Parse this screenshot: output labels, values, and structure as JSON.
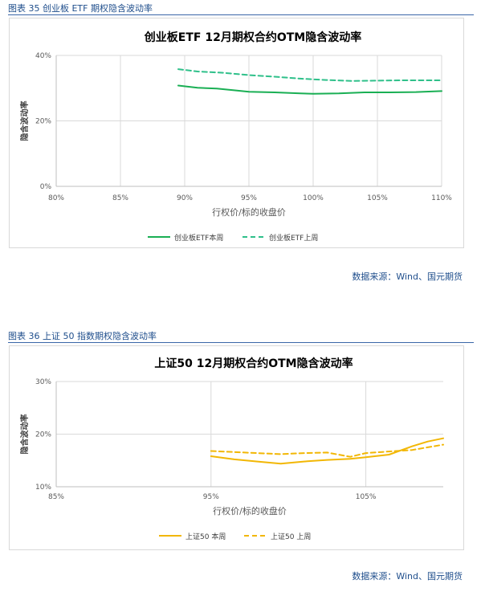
{
  "figures": [
    {
      "caption": "图表 35 创业板 ETF 期权隐含波动率",
      "source": "数据来源：Wind、国元期货",
      "colors": {
        "this_week": "#1aaf54",
        "last_week": "#2fc08a"
      },
      "chart_data": {
        "type": "line",
        "title": "创业板ETF 12月期权合约OTM隐含波动率",
        "xlabel": "行权价/标的收盘价",
        "ylabel": "隐含波动率",
        "xlim": [
          80,
          110
        ],
        "ylim": [
          0,
          40
        ],
        "x_ticks": [
          "80%",
          "85%",
          "90%",
          "95%",
          "100%",
          "105%",
          "110%"
        ],
        "y_ticks": [
          "0%",
          "20%",
          "40%"
        ],
        "grid": true,
        "legend": "bottom",
        "series": [
          {
            "name": "创业板ETF本周",
            "style": "solid",
            "x": [
              89.5,
              91,
              92.5,
              94,
              95,
              97,
              99,
              100,
              102,
              104,
              106,
              108,
              110
            ],
            "y": [
              30.8,
              30.1,
              29.9,
              29.3,
              28.9,
              28.7,
              28.4,
              28.3,
              28.4,
              28.7,
              28.7,
              28.8,
              29.1
            ]
          },
          {
            "name": "创业板ETF上周",
            "style": "dashed",
            "x": [
              89.5,
              91,
              93,
              95,
              97,
              99,
              101,
              103,
              105,
              107,
              110
            ],
            "y": [
              35.8,
              35.1,
              34.7,
              34.0,
              33.5,
              32.9,
              32.5,
              32.2,
              32.3,
              32.4,
              32.4
            ]
          }
        ]
      }
    },
    {
      "caption": "图表 36 上证 50 指数期权隐含波动率",
      "source": "数据来源：Wind、国元期货",
      "colors": {
        "this_week": "#f2b705",
        "last_week": "#f2b705"
      },
      "chart_data": {
        "type": "line",
        "title": "上证50 12月期权合约OTM隐含波动率",
        "xlabel": "行权价/标的收盘价",
        "ylabel": "隐含波动率",
        "xlim": [
          85,
          110
        ],
        "ylim": [
          10,
          30
        ],
        "x_ticks": [
          "85%",
          "95%",
          "105%"
        ],
        "x_tick_values": [
          85,
          95,
          105
        ],
        "y_ticks": [
          "10%",
          "20%",
          "30%"
        ],
        "grid": true,
        "legend": "bottom",
        "series": [
          {
            "name": "上证50 本周",
            "style": "solid",
            "x": [
              95,
              96.5,
              98,
              99.5,
              101,
              102.5,
              104,
              105,
              106.5,
              108,
              109,
              110
            ],
            "y": [
              15.8,
              15.2,
              14.8,
              14.4,
              14.8,
              15.1,
              15.3,
              15.6,
              16.1,
              17.7,
              18.6,
              19.2
            ]
          },
          {
            "name": "上证50 上周",
            "style": "dashed",
            "x": [
              95,
              96.5,
              98,
              99.5,
              101,
              102.5,
              104,
              105,
              106.5,
              108,
              109,
              110
            ],
            "y": [
              16.8,
              16.6,
              16.4,
              16.2,
              16.4,
              16.5,
              15.7,
              16.4,
              16.7,
              17.0,
              17.5,
              18.0
            ]
          }
        ]
      }
    }
  ]
}
